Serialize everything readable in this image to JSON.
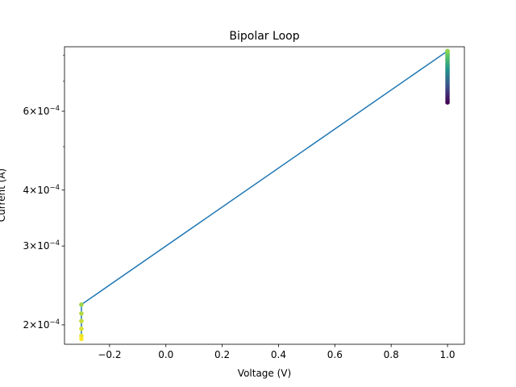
{
  "chart_data": {
    "type": "line",
    "title": "Bipolar Loop",
    "xlabel": "Voltage (V)",
    "ylabel": "Current (A)",
    "yscale": "log",
    "xlim": [
      -0.36,
      1.06
    ],
    "ylim": [
      0.000181,
      0.000836
    ],
    "grid": false,
    "legend": "none",
    "x_ticks": [
      {
        "value": -0.2,
        "label": "−0.2"
      },
      {
        "value": 0.0,
        "label": "0.0"
      },
      {
        "value": 0.2,
        "label": "0.2"
      },
      {
        "value": 0.4,
        "label": "0.4"
      },
      {
        "value": 0.6,
        "label": "0.6"
      },
      {
        "value": 0.8,
        "label": "0.8"
      },
      {
        "value": 1.0,
        "label": "1.0"
      }
    ],
    "y_ticks": [
      {
        "value": 0.0002,
        "base": "2",
        "exp": "−4"
      },
      {
        "value": 0.0003,
        "base": "3",
        "exp": "−4"
      },
      {
        "value": 0.0004,
        "base": "4",
        "exp": "−4"
      },
      {
        "value": 0.0006,
        "base": "6",
        "exp": "−4"
      }
    ],
    "y_minor_ticks": [
      0.0005,
      0.0007,
      0.0008
    ],
    "line_color": "#1f77b4",
    "series": [
      {
        "x": [
          1.0,
          1.0,
          1.0,
          1.0,
          1.0,
          1.0,
          1.0,
          1.0,
          1.0,
          1.0,
          1.0,
          1.0,
          1.0,
          1.0,
          1.0,
          1.0,
          1.0,
          1.0,
          1.0,
          1.0,
          1.0,
          1.0,
          1.0,
          1.0,
          1.0,
          1.0,
          1.0,
          1.0,
          1.0,
          -0.3,
          -0.3,
          -0.3,
          -0.3,
          -0.3,
          -0.3
        ],
        "y": [
          0.000628,
          0.000635,
          0.000642,
          0.000649,
          0.000656,
          0.000663,
          0.00067,
          0.000677,
          0.000684,
          0.000691,
          0.000698,
          0.000705,
          0.000712,
          0.000719,
          0.000726,
          0.000733,
          0.00074,
          0.000747,
          0.000754,
          0.000761,
          0.000768,
          0.000775,
          0.000782,
          0.000789,
          0.000796,
          0.000803,
          0.00081,
          0.000817,
          0.000818,
          0.000222,
          0.000212,
          0.000204,
          0.000196,
          0.000189,
          0.000186
        ]
      }
    ],
    "marker_colormap": [
      "#440154",
      "#3b528b",
      "#21918c",
      "#5ec962",
      "#fde725"
    ]
  }
}
